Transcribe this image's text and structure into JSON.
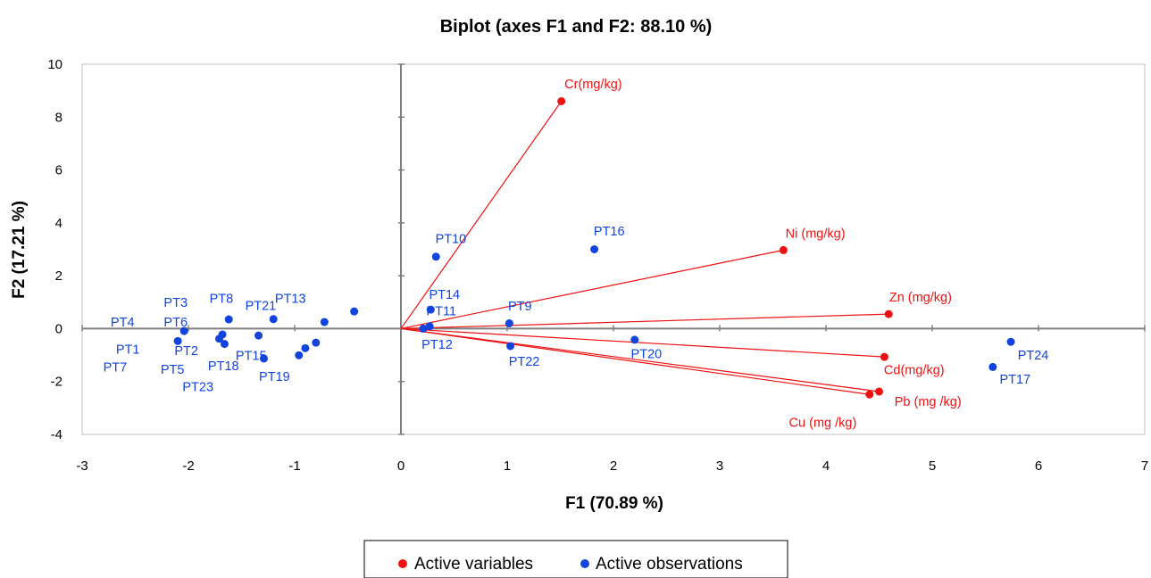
{
  "chart_data": {
    "type": "scatter",
    "title": "Biplot (axes F1 and F2: 88.10 %)",
    "xlabel": "F1 (70.89 %)",
    "ylabel": "F2 (17.21 %)",
    "xlim": [
      -3,
      7
    ],
    "ylim": [
      -4,
      10
    ],
    "xticks": [
      -3,
      -2,
      -1,
      0,
      1,
      2,
      3,
      4,
      5,
      6,
      7
    ],
    "yticks": [
      -4,
      -2,
      0,
      2,
      4,
      6,
      8,
      10
    ],
    "grid": false,
    "legend_position": "bottom",
    "colors": {
      "variables": "#ee1111",
      "observations": "#1144dd",
      "axes": "#7f7f7f"
    },
    "legend": [
      "Active variables",
      "Active observations"
    ],
    "variables": [
      {
        "name": "Cr(mg/kg)",
        "x": 1.51,
        "y": 8.6
      },
      {
        "name": "Ni (mg/kg)",
        "x": 3.6,
        "y": 2.97
      },
      {
        "name": "Zn (mg/kg)",
        "x": 4.59,
        "y": 0.55
      },
      {
        "name": "Cd(mg/kg)",
        "x": 4.55,
        "y": -1.07
      },
      {
        "name": "Pb (mg /kg)",
        "x": 4.5,
        "y": -2.38
      },
      {
        "name": "Cu (mg /kg)",
        "x": 4.41,
        "y": -2.49
      }
    ],
    "observations": [
      {
        "x": -2.1,
        "y": -0.47
      },
      {
        "x": -2.04,
        "y": -0.09
      },
      {
        "x": -1.71,
        "y": -0.38
      },
      {
        "x": -1.68,
        "y": -0.22
      },
      {
        "x": -1.66,
        "y": -0.58
      },
      {
        "x": -1.62,
        "y": 0.35
      },
      {
        "x": -1.34,
        "y": -0.26
      },
      {
        "x": -1.29,
        "y": -1.13
      },
      {
        "x": -1.2,
        "y": 0.36
      },
      {
        "x": -0.96,
        "y": -1.01
      },
      {
        "x": -0.9,
        "y": -0.74
      },
      {
        "x": -0.8,
        "y": -0.53
      },
      {
        "x": -0.72,
        "y": 0.25
      },
      {
        "x": -0.44,
        "y": 0.65
      },
      {
        "x": 0.33,
        "y": 2.72
      },
      {
        "x": 0.28,
        "y": 0.72
      },
      {
        "x": 0.27,
        "y": 0.09
      },
      {
        "x": 0.21,
        "y": 0.0
      },
      {
        "x": 1.02,
        "y": 0.2
      },
      {
        "x": 1.03,
        "y": -0.66
      },
      {
        "x": 1.82,
        "y": 3.0
      },
      {
        "x": 2.2,
        "y": -0.42
      },
      {
        "x": 5.57,
        "y": -1.45
      },
      {
        "x": 5.74,
        "y": -0.5
      }
    ],
    "observation_labels": [
      {
        "text": "PT4",
        "x": -2.62,
        "y": 0.25
      },
      {
        "text": "PT3",
        "x": -2.12,
        "y": 1.0
      },
      {
        "text": "PT6",
        "x": -2.12,
        "y": 0.25
      },
      {
        "text": "PT1",
        "x": -2.57,
        "y": -0.78
      },
      {
        "text": "PT2",
        "x": -2.02,
        "y": -0.83
      },
      {
        "text": "PT7",
        "x": -2.69,
        "y": -1.45
      },
      {
        "text": "PT5",
        "x": -2.15,
        "y": -1.53
      },
      {
        "text": "PT8",
        "x": -1.69,
        "y": 1.15
      },
      {
        "text": "PT21",
        "x": -1.32,
        "y": 0.88
      },
      {
        "text": "PT13",
        "x": -1.04,
        "y": 1.15
      },
      {
        "text": "PT15",
        "x": -1.41,
        "y": -1.02
      },
      {
        "text": "PT18",
        "x": -1.67,
        "y": -1.4
      },
      {
        "text": "PT23",
        "x": -1.91,
        "y": -2.2
      },
      {
        "text": "PT19",
        "x": -1.19,
        "y": -1.8
      },
      {
        "text": "PT10",
        "x": 0.47,
        "y": 3.4
      },
      {
        "text": "PT14",
        "x": 0.41,
        "y": 1.3
      },
      {
        "text": "PT11",
        "x": 0.38,
        "y": 0.68
      },
      {
        "text": "PT12",
        "x": 0.34,
        "y": -0.6
      },
      {
        "text": "PT9",
        "x": 1.12,
        "y": 0.85
      },
      {
        "text": "PT22",
        "x": 1.16,
        "y": -1.23
      },
      {
        "text": "PT16",
        "x": 1.96,
        "y": 3.7
      },
      {
        "text": "PT20",
        "x": 2.31,
        "y": -0.95
      },
      {
        "text": "PT24",
        "x": 5.95,
        "y": -1.0
      },
      {
        "text": "PT17",
        "x": 5.78,
        "y": -1.9
      }
    ],
    "variable_labels": [
      {
        "text": "Cr(mg/kg)",
        "x": 1.81,
        "y": 9.25
      },
      {
        "text": "Ni (mg/kg)",
        "x": 3.9,
        "y": 3.6
      },
      {
        "text": "Zn (mg/kg)",
        "x": 4.89,
        "y": 1.2
      },
      {
        "text": "Cd(mg/kg)",
        "x": 4.83,
        "y": -1.55
      },
      {
        "text": "Pb (mg /kg)",
        "x": 4.96,
        "y": -2.75
      },
      {
        "text": "Cu (mg /kg)",
        "x": 3.97,
        "y": -3.55
      }
    ]
  }
}
